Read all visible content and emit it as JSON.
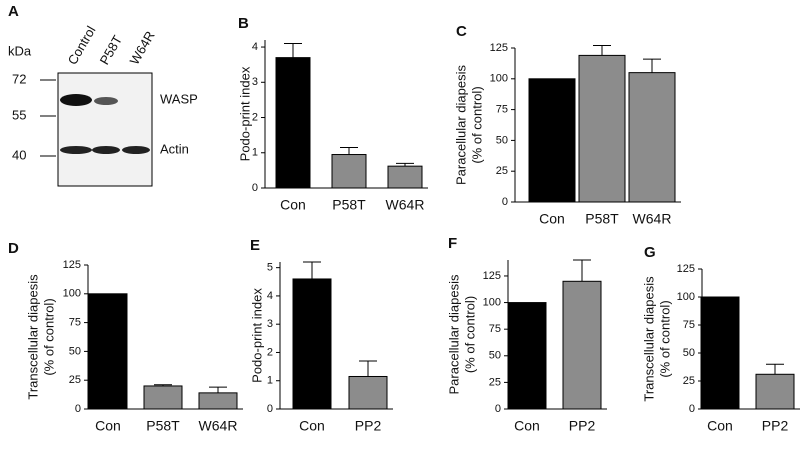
{
  "blot": {
    "label": "A",
    "unit": "kDa",
    "lanes": [
      "Control",
      "P58T",
      "W64R"
    ],
    "markers": [
      "72",
      "55",
      "40"
    ],
    "bands": [
      "WASP",
      "Actin"
    ]
  },
  "chart_data": [
    {
      "type": "bar",
      "label": "B",
      "ylabel": [
        "Podo-print index"
      ],
      "categories": [
        "Con",
        "P58T",
        "W64R"
      ],
      "values": [
        3.7,
        0.95,
        0.62
      ],
      "errors": [
        0.4,
        0.2,
        0.08
      ],
      "colors": [
        "#000000",
        "#8c8c8c",
        "#8c8c8c"
      ],
      "ylim": [
        0,
        4.2
      ],
      "yticks": [
        0,
        1,
        2,
        3,
        4
      ]
    },
    {
      "type": "bar",
      "label": "C",
      "ylabel": [
        "Paracellular diapesis",
        "(% of control)"
      ],
      "categories": [
        "Con",
        "P58T",
        "W64R"
      ],
      "values": [
        100,
        119,
        105
      ],
      "errors": [
        0,
        8,
        11
      ],
      "colors": [
        "#000000",
        "#8c8c8c",
        "#8c8c8c"
      ],
      "ylim": [
        0,
        125
      ],
      "yticks": [
        0,
        25,
        50,
        75,
        100,
        125
      ]
    },
    {
      "type": "bar",
      "label": "D",
      "ylabel": [
        "Transcellular diapesis",
        "(% of control)"
      ],
      "categories": [
        "Con",
        "P58T",
        "W64R"
      ],
      "values": [
        100,
        20,
        14
      ],
      "errors": [
        0,
        1,
        5
      ],
      "colors": [
        "#000000",
        "#8c8c8c",
        "#8c8c8c"
      ],
      "ylim": [
        0,
        125
      ],
      "yticks": [
        0,
        25,
        50,
        75,
        100,
        125
      ]
    },
    {
      "type": "bar",
      "label": "E",
      "ylabel": [
        "Podo-print index"
      ],
      "categories": [
        "Con",
        "PP2"
      ],
      "values": [
        4.6,
        1.15
      ],
      "errors": [
        0.6,
        0.55
      ],
      "colors": [
        "#000000",
        "#8c8c8c"
      ],
      "ylim": [
        0,
        5.2
      ],
      "yticks": [
        0,
        1,
        2,
        3,
        4,
        5
      ]
    },
    {
      "type": "bar",
      "label": "F",
      "ylabel": [
        "Paracellular diapesis",
        "(% of control)"
      ],
      "categories": [
        "Con",
        "PP2"
      ],
      "values": [
        100,
        120
      ],
      "errors": [
        0,
        20
      ],
      "colors": [
        "#000000",
        "#8c8c8c"
      ],
      "ylim": [
        0,
        140
      ],
      "yticks": [
        0,
        25,
        50,
        75,
        100,
        125
      ]
    },
    {
      "type": "bar",
      "label": "G",
      "ylabel": [
        "Transcellular diapesis",
        "(% of control)"
      ],
      "categories": [
        "Con",
        "PP2"
      ],
      "values": [
        100,
        31
      ],
      "errors": [
        0,
        9
      ],
      "colors": [
        "#000000",
        "#8c8c8c"
      ],
      "ylim": [
        0,
        125
      ],
      "yticks": [
        0,
        25,
        50,
        75,
        100,
        125
      ]
    }
  ]
}
